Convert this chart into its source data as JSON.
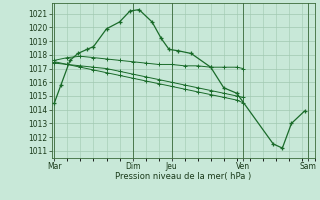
{
  "background_color": "#c8e8d8",
  "grid_color": "#a0c8b0",
  "line_color": "#1a6b2a",
  "ylabel_ticks": [
    1011,
    1012,
    1013,
    1014,
    1015,
    1016,
    1017,
    1018,
    1019,
    1020,
    1021
  ],
  "ylim": [
    1010.5,
    1021.8
  ],
  "xlabel": "Pression niveau de la mer( hPa )",
  "day_labels": [
    "Mar",
    "",
    "Dim",
    "Jeu",
    "",
    "Ven",
    "",
    "Sam"
  ],
  "xtick_show": [
    0.0,
    6.0,
    9.0,
    14.5,
    19.5
  ],
  "xtick_labels_show": [
    "Mar",
    "Dim",
    "Jeu",
    "Ven",
    "Sam"
  ],
  "series0_x": [
    0,
    0.5,
    1.2,
    1.8,
    2.5,
    3.0,
    4.0,
    5.0,
    5.8,
    6.5,
    7.5,
    8.2,
    8.8,
    9.5,
    10.5,
    12.0,
    13.0,
    14.0,
    16.8,
    17.5,
    18.2,
    19.2
  ],
  "series0_y": [
    1014.5,
    1015.8,
    1017.6,
    1018.1,
    1018.4,
    1018.6,
    1019.9,
    1020.4,
    1021.2,
    1021.3,
    1020.4,
    1019.2,
    1018.4,
    1018.3,
    1018.1,
    1017.1,
    1015.6,
    1015.2,
    1011.5,
    1011.2,
    1013.0,
    1013.9
  ],
  "series1_x": [
    0,
    1,
    2,
    3,
    4,
    5,
    6,
    7,
    8,
    9,
    10,
    11,
    12,
    13,
    14,
    14.5
  ],
  "series1_y": [
    1017.6,
    1017.8,
    1017.9,
    1017.8,
    1017.7,
    1017.6,
    1017.5,
    1017.4,
    1017.3,
    1017.3,
    1017.2,
    1017.2,
    1017.1,
    1017.1,
    1017.1,
    1017.0
  ],
  "series2_x": [
    0,
    1,
    2,
    3,
    4,
    5,
    6,
    7,
    8,
    9,
    10,
    11,
    12,
    13,
    14,
    14.5
  ],
  "series2_y": [
    1017.4,
    1017.3,
    1017.2,
    1017.1,
    1017.0,
    1016.8,
    1016.6,
    1016.4,
    1016.2,
    1016.0,
    1015.8,
    1015.6,
    1015.4,
    1015.2,
    1015.0,
    1014.9
  ],
  "series3_x": [
    0,
    1,
    2,
    3,
    4,
    5,
    6,
    7,
    8,
    9,
    10,
    11,
    12,
    13,
    14,
    14.5
  ],
  "series3_y": [
    1017.5,
    1017.3,
    1017.1,
    1016.9,
    1016.7,
    1016.5,
    1016.3,
    1016.1,
    1015.9,
    1015.7,
    1015.5,
    1015.3,
    1015.1,
    1014.9,
    1014.7,
    1014.5
  ],
  "xlim": [
    -0.2,
    20.0
  ],
  "figsize": [
    3.2,
    2.0
  ],
  "dpi": 100
}
